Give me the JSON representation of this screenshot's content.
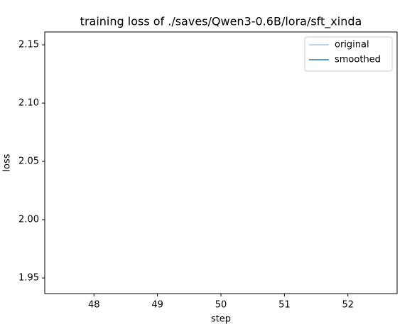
{
  "chart_data": {
    "type": "line",
    "title": "training loss of ./saves/Qwen3-0.6B/lora/sft_xinda",
    "x_label": "step",
    "y_label": "loss",
    "x": [],
    "series": [
      {
        "name": "original",
        "color": "#a5c8e1",
        "values": []
      },
      {
        "name": "smoothed",
        "color": "#1f77b4",
        "values": []
      }
    ],
    "xlim": [
      47.225,
      52.775
    ],
    "xticks": [
      48,
      49,
      50,
      51,
      52
    ],
    "ylim": [
      1.9366,
      2.161
    ],
    "yticks": [
      1.95,
      {
        "value": 2,
        "label": "2.00"
      },
      2.05,
      {
        "value": 2.1,
        "label": "2.10"
      },
      2.15
    ],
    "grid": false,
    "legend": "upper right"
  }
}
